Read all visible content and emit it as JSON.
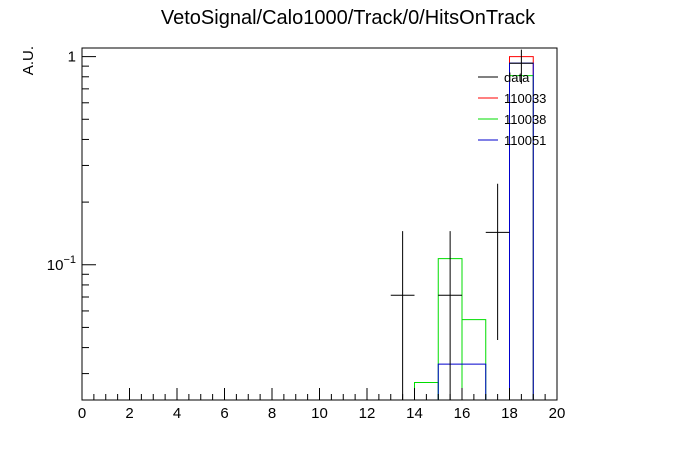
{
  "chart_data": {
    "type": "histogram",
    "title": "VetoSignal/Calo1000/Track/0/HitsOnTrack",
    "ylabel": "A.U.",
    "xlim": [
      0,
      20
    ],
    "ylim": [
      0.0224,
      1.1
    ],
    "yscale": "log",
    "xticks": [
      0,
      2,
      4,
      6,
      8,
      10,
      12,
      14,
      16,
      18,
      20
    ],
    "ytick_labels": [
      {
        "value": 1,
        "label": "1"
      },
      {
        "value": 0.1,
        "base": "10",
        "exp": "−1"
      }
    ],
    "legend_placement": "top-right",
    "grid": false,
    "series": [
      {
        "name": "data",
        "kind": "points",
        "color": "#000000",
        "points": [
          {
            "x": 13.5,
            "y": 0.0714,
            "ylo": 0.0224,
            "yhi": 0.145
          },
          {
            "x": 15.5,
            "y": 0.0714,
            "ylo": 0.0224,
            "yhi": 0.145
          },
          {
            "x": 17.5,
            "y": 0.143,
            "ylo": 0.0435,
            "yhi": 0.245
          },
          {
            "x": 18.5,
            "y": 0.929,
            "ylo": 0.74,
            "yhi": 1.08
          }
        ]
      },
      {
        "name": "110033",
        "kind": "step",
        "color": "#ff0000",
        "bins": [
          {
            "x0": 18,
            "x1": 19,
            "y": 1.0
          }
        ]
      },
      {
        "name": "110038",
        "kind": "step",
        "color": "#00dd00",
        "bins": [
          {
            "x0": 14,
            "x1": 15,
            "y": 0.0272
          },
          {
            "x0": 15,
            "x1": 16,
            "y": 0.107
          },
          {
            "x0": 16,
            "x1": 17,
            "y": 0.0545
          },
          {
            "x0": 18,
            "x1": 19,
            "y": 0.81
          }
        ]
      },
      {
        "name": "110051",
        "kind": "step",
        "color": "#0000cc",
        "bins": [
          {
            "x0": 15,
            "x1": 17,
            "y": 0.0333
          },
          {
            "x0": 18,
            "x1": 19,
            "y": 0.93
          }
        ]
      }
    ]
  }
}
